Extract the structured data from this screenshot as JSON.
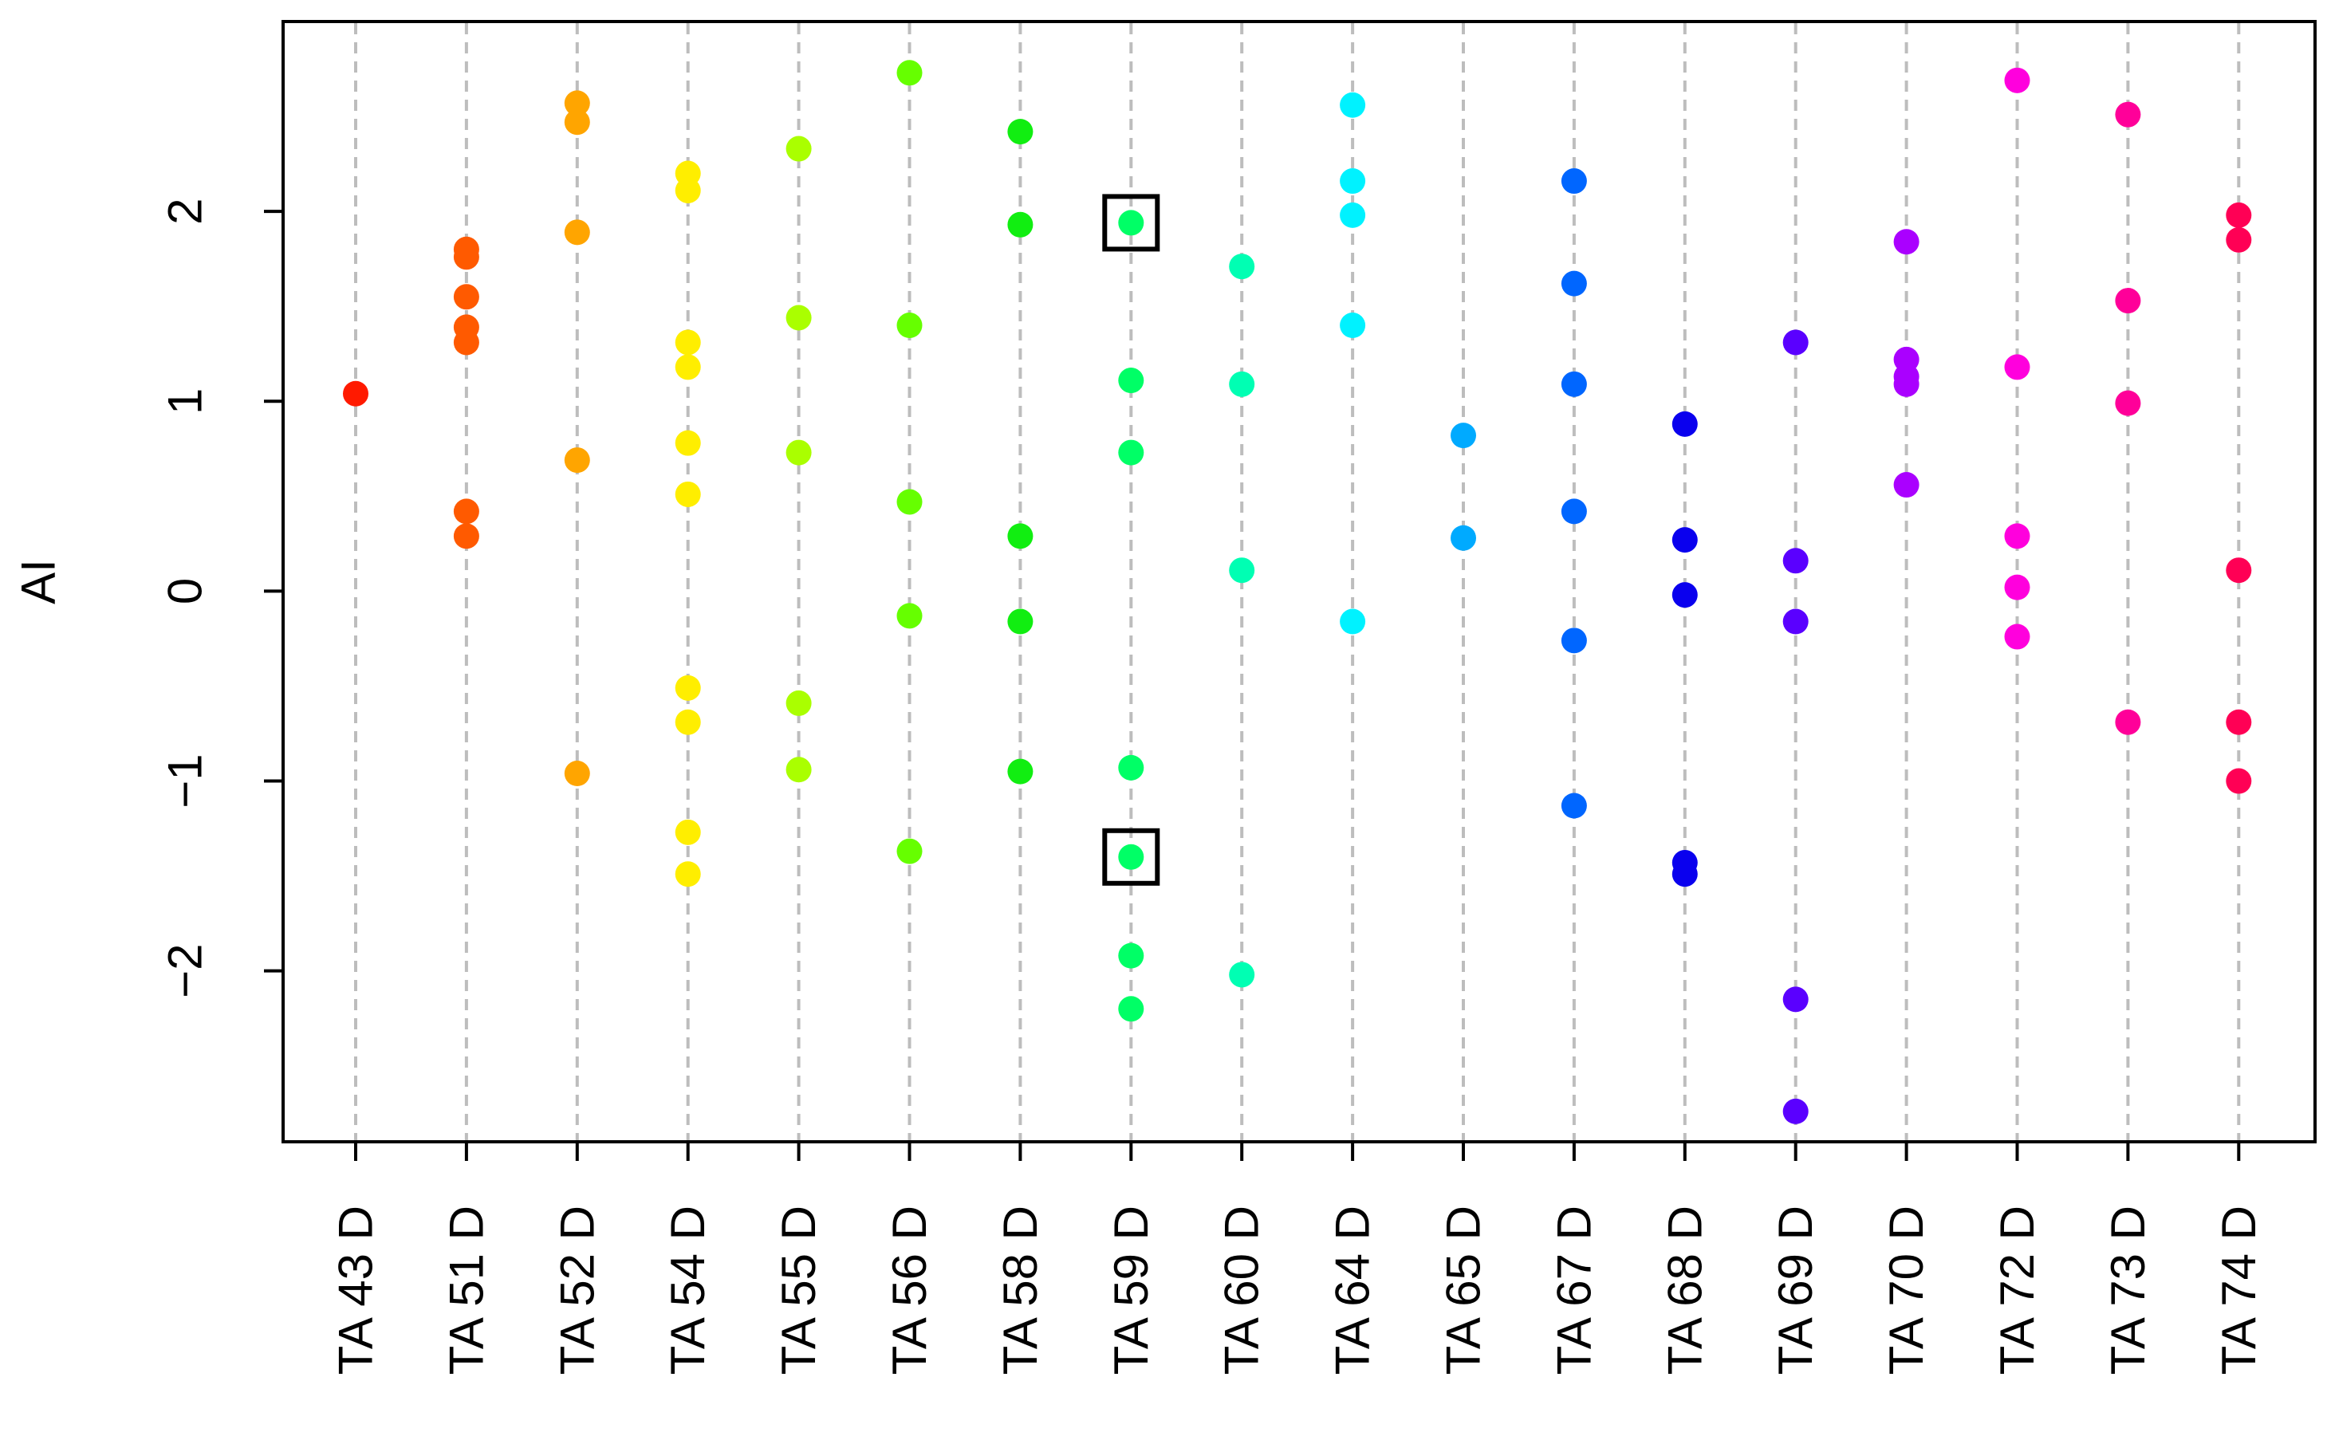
{
  "chart_data": {
    "type": "scatter",
    "title": "",
    "xlabel": "",
    "ylabel": "AI",
    "ylim": [
      -2.9,
      3.0
    ],
    "yticks": [
      -2,
      -1,
      0,
      1,
      2
    ],
    "grid": "vertical-dashed",
    "categories": [
      "TA 43 D",
      "TA 51 D",
      "TA 52 D",
      "TA 54 D",
      "TA 55 D",
      "TA 56 D",
      "TA 58 D",
      "TA 59 D",
      "TA 60 D",
      "TA 64 D",
      "TA 65 D",
      "TA 67 D",
      "TA 68 D",
      "TA 69 D",
      "TA 70 D",
      "TA 72 D",
      "TA 73 D",
      "TA 74 D"
    ],
    "series": [
      {
        "category": "TA 43 D",
        "color": "#ff1a00",
        "values": [
          1.04
        ]
      },
      {
        "category": "TA 51 D",
        "color": "#ff5a00",
        "values": [
          1.8,
          1.76,
          1.55,
          1.39,
          1.31,
          0.42,
          0.29
        ]
      },
      {
        "category": "TA 52 D",
        "color": "#ffa500",
        "values": [
          2.57,
          2.47,
          1.89,
          0.69,
          -0.96
        ]
      },
      {
        "category": "TA 54 D",
        "color": "#ffee00",
        "values": [
          2.2,
          2.11,
          1.31,
          1.18,
          0.78,
          0.51,
          -0.51,
          -0.69,
          -1.27,
          -1.49
        ]
      },
      {
        "category": "TA 55 D",
        "color": "#aaff00",
        "values": [
          2.33,
          1.44,
          0.73,
          -0.59,
          -0.94
        ]
      },
      {
        "category": "TA 56 D",
        "color": "#66ff00",
        "values": [
          2.73,
          1.4,
          0.47,
          -0.13,
          -1.37
        ]
      },
      {
        "category": "TA 58 D",
        "color": "#11ee11",
        "values": [
          2.42,
          1.93,
          0.29,
          -0.16,
          -0.95
        ]
      },
      {
        "category": "TA 59 D",
        "color": "#00ff66",
        "values": [
          1.94,
          1.11,
          0.73,
          -0.93,
          -1.4,
          -1.92,
          -2.2
        ]
      },
      {
        "category": "TA 60 D",
        "color": "#00ffb3",
        "values": [
          1.71,
          1.09,
          0.11,
          -2.02
        ]
      },
      {
        "category": "TA 64 D",
        "color": "#00f2ff",
        "values": [
          2.56,
          2.16,
          1.98,
          1.4,
          -0.16
        ]
      },
      {
        "category": "TA 65 D",
        "color": "#00aaff",
        "values": [
          0.82,
          0.28
        ]
      },
      {
        "category": "TA 67 D",
        "color": "#0066ff",
        "values": [
          2.16,
          1.62,
          1.09,
          0.42,
          -0.26,
          -1.13
        ]
      },
      {
        "category": "TA 68 D",
        "color": "#0a00ee",
        "values": [
          0.88,
          0.27,
          -0.02,
          -1.43,
          -1.49
        ]
      },
      {
        "category": "TA 69 D",
        "color": "#5a00ff",
        "values": [
          1.31,
          0.16,
          -0.16,
          -2.15,
          -2.74
        ]
      },
      {
        "category": "TA 70 D",
        "color": "#aa00ff",
        "values": [
          1.84,
          1.22,
          1.13,
          1.09,
          0.56
        ]
      },
      {
        "category": "TA 72 D",
        "color": "#ff00dd",
        "values": [
          2.69,
          1.18,
          0.29,
          0.02,
          -0.24
        ]
      },
      {
        "category": "TA 73 D",
        "color": "#ff0099",
        "values": [
          2.51,
          1.53,
          0.99,
          -0.69
        ]
      },
      {
        "category": "TA 74 D",
        "color": "#ff0055",
        "values": [
          1.98,
          1.85,
          0.11,
          -0.69,
          -1.0
        ]
      }
    ],
    "highlighted_points": [
      {
        "category": "TA 59 D",
        "value": 1.94
      },
      {
        "category": "TA 59 D",
        "value": -1.4
      }
    ]
  }
}
